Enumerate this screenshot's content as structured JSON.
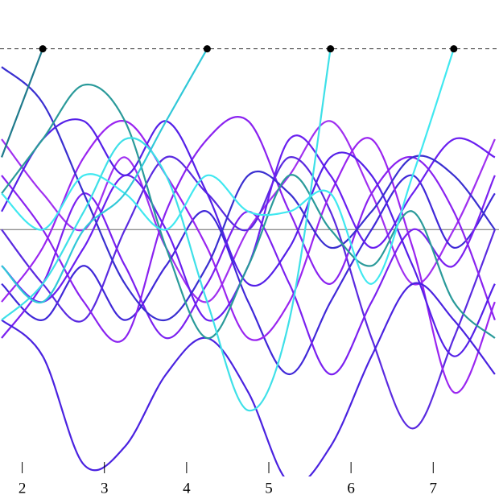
{
  "chart_data": {
    "type": "line",
    "x": [
      1.75,
      2.25,
      2.75,
      3.25,
      3.75,
      4.25,
      4.75,
      5.25,
      5.75,
      6.25,
      6.75,
      7.25,
      7.75
    ],
    "xlim": [
      1.73,
      7.8
    ],
    "xticks": [
      2,
      3,
      4,
      5,
      6,
      7
    ],
    "ylim": [
      -1.49,
      1.27
    ],
    "hlines": [
      {
        "value": 1,
        "style": "dashed"
      },
      {
        "value": 0,
        "style": "solid"
      }
    ],
    "series": [
      {
        "color": "#1f7a8c",
        "end_marker": true,
        "values": [
          0.4,
          1.0,
          null,
          null,
          null,
          null,
          null,
          null,
          null,
          null,
          null,
          null,
          null
        ]
      },
      {
        "color": "#30c8d8",
        "end_marker": true,
        "values": [
          -0.2,
          -0.4,
          0.0,
          0.2,
          0.6,
          1.0,
          null,
          null,
          null,
          null,
          null,
          null,
          null
        ]
      },
      {
        "color": "#3ee0e8",
        "end_marker": true,
        "values": [
          -0.5,
          -0.3,
          0.1,
          0.5,
          0.3,
          -0.4,
          -1.0,
          -0.5,
          1.0,
          null,
          null,
          null,
          null
        ]
      },
      {
        "color": "#40e8f0",
        "end_marker": true,
        "values": [
          0.2,
          0.0,
          0.3,
          0.2,
          0.0,
          0.3,
          0.1,
          0.1,
          0.2,
          -0.3,
          0.3,
          1.0,
          null
        ]
      },
      {
        "color": "#2a9a9a",
        "values": [
          0.2,
          0.5,
          0.8,
          0.6,
          -0.1,
          -0.6,
          -0.2,
          0.3,
          0.0,
          -0.2,
          0.1,
          -0.4,
          -0.6
        ]
      },
      {
        "color": "#3a2fd0",
        "values": [
          0.9,
          0.7,
          0.2,
          -0.3,
          -0.5,
          -0.2,
          0.3,
          0.2,
          -0.1,
          0.1,
          0.4,
          0.3,
          0.0
        ]
      },
      {
        "color": "#4a22e0",
        "values": [
          -0.5,
          -0.7,
          -1.3,
          -1.2,
          -0.8,
          -0.6,
          -0.9,
          -1.4,
          -1.2,
          -0.7,
          -0.3,
          -0.5,
          -0.8
        ]
      },
      {
        "color": "#5520e8",
        "values": [
          0.1,
          0.5,
          0.6,
          0.3,
          0.6,
          0.2,
          -0.3,
          -0.1,
          0.4,
          0.3,
          -0.2,
          -0.7,
          -0.3
        ]
      },
      {
        "color": "#6a1ff0",
        "values": [
          -0.2,
          -0.4,
          -0.1,
          0.3,
          0.0,
          -0.5,
          -0.2,
          0.5,
          0.3,
          -0.1,
          0.2,
          0.5,
          0.4
        ]
      },
      {
        "color": "#7b20f0",
        "values": [
          -0.6,
          -0.3,
          0.2,
          -0.2,
          -0.6,
          -0.3,
          0.1,
          -0.3,
          -0.8,
          -0.4,
          0.0,
          -0.2,
          0.3
        ]
      },
      {
        "color": "#8a22f0",
        "values": [
          0.3,
          0.0,
          -0.4,
          -0.6,
          0.1,
          0.5,
          0.6,
          0.1,
          -0.3,
          0.2,
          0.4,
          0.1,
          -0.5
        ]
      },
      {
        "color": "#9a25f0",
        "values": [
          -0.4,
          -0.1,
          0.4,
          0.6,
          0.3,
          -0.1,
          -0.6,
          -0.4,
          0.2,
          0.5,
          -0.1,
          -0.9,
          -0.4
        ]
      },
      {
        "color": "#5a2ae0",
        "values": [
          0.0,
          -0.3,
          -0.5,
          0.0,
          0.4,
          0.2,
          0.0,
          0.4,
          0.1,
          -0.6,
          -1.1,
          -0.6,
          0.0
        ]
      },
      {
        "color": "#4028d8",
        "values": [
          -0.3,
          -0.5,
          -0.2,
          -0.5,
          -0.2,
          0.1,
          -0.4,
          -0.8,
          -0.4,
          0.0,
          0.3,
          -0.1,
          0.2
        ]
      },
      {
        "color": "#a030f0",
        "values": [
          0.5,
          0.2,
          0.0,
          0.4,
          -0.1,
          -0.4,
          0.0,
          0.3,
          0.6,
          0.2,
          -0.3,
          0.0,
          0.5
        ]
      }
    ]
  }
}
